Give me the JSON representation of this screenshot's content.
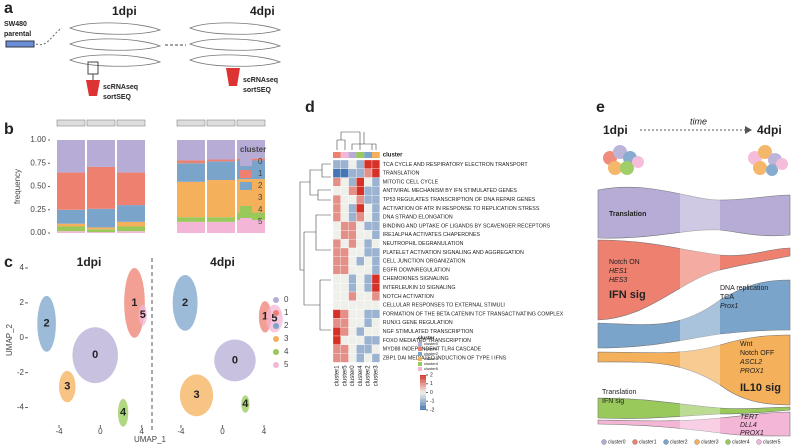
{
  "panel_labels": [
    "a",
    "b",
    "c",
    "d",
    "e"
  ],
  "schematic_a": {
    "source_lines": [
      "SW480",
      "parental"
    ],
    "timepoints": [
      "1dpi",
      "4dpi"
    ],
    "assay_lines": [
      "scRNAseq",
      "sortSEQ"
    ]
  },
  "chart_data": [
    {
      "type": "bar",
      "stacked": true,
      "categories": [
        null,
        null,
        null,
        null,
        null,
        null
      ],
      "ylabel": "frequency",
      "legend_title": "cluster",
      "ylim": [
        0,
        1
      ],
      "yticks": [
        {
          "value": 0,
          "label": "0.00"
        },
        {
          "value": 0.25,
          "label": "0.25"
        },
        {
          "value": 0.5,
          "label": "0.50"
        },
        {
          "value": 0.75,
          "label": "0.75"
        },
        {
          "value": 1,
          "label": "1.00"
        }
      ],
      "series": [
        {
          "name": "5",
          "color": "#f4b6d6",
          "values": [
            0.02,
            0.01,
            0.02,
            0.12,
            0.12,
            0.14
          ]
        },
        {
          "name": "4",
          "color": "#98c95a",
          "values": [
            0.05,
            0.03,
            0.05,
            0.05,
            0.05,
            0.08
          ]
        },
        {
          "name": "3",
          "color": "#f4b05a",
          "values": [
            0.03,
            0.02,
            0.05,
            0.38,
            0.4,
            0.36
          ]
        },
        {
          "name": "2",
          "color": "#7ba4cb",
          "values": [
            0.15,
            0.2,
            0.18,
            0.2,
            0.2,
            0.2
          ]
        },
        {
          "name": "1",
          "color": "#ee8070",
          "values": [
            0.4,
            0.45,
            0.35,
            0.03,
            0.02,
            0.02
          ]
        },
        {
          "name": "0",
          "color": "#b6acd6",
          "values": [
            0.35,
            0.29,
            0.35,
            0.22,
            0.21,
            0.2
          ]
        }
      ]
    },
    {
      "type": "umap",
      "xlabel": "UMAP_1",
      "ylabel": "UMAP_2",
      "ylim": [
        -5,
        4.8
      ],
      "yticks": [
        -4,
        -2,
        0,
        2,
        4
      ],
      "panels": [
        {
          "title": "1dpi",
          "xlim": [
            -7,
            4.8
          ],
          "xticks": [
            -4,
            0,
            4
          ],
          "clusters": [
            {
              "name": "0",
              "x": -0.5,
              "y": -1,
              "sx": 2.2,
              "sy": 1.6
            },
            {
              "name": "1",
              "x": 3.3,
              "y": 2,
              "sx": 1,
              "sy": 2
            },
            {
              "name": "2",
              "x": -5.2,
              "y": 0.8,
              "sx": 0.9,
              "sy": 1.6
            },
            {
              "name": "3",
              "x": -3.2,
              "y": -2.8,
              "sx": 0.8,
              "sy": 0.9
            },
            {
              "name": "4",
              "x": 2.2,
              "y": -4.3,
              "sx": 0.5,
              "sy": 0.8
            },
            {
              "name": "5",
              "x": 4.1,
              "y": 1.3,
              "sx": 0.4,
              "sy": 0.6
            }
          ]
        },
        {
          "title": "4dpi",
          "xlim": [
            -6.5,
            6.5
          ],
          "xticks": [
            -4,
            0,
            4
          ],
          "clusters": [
            {
              "name": "0",
              "x": 1.2,
              "y": -1.3,
              "sx": 2,
              "sy": 1.2
            },
            {
              "name": "1",
              "x": 4.1,
              "y": 1.2,
              "sx": 0.6,
              "sy": 0.9
            },
            {
              "name": "2",
              "x": -3.6,
              "y": 2,
              "sx": 1.2,
              "sy": 1.6
            },
            {
              "name": "3",
              "x": -2.5,
              "y": -3.3,
              "sx": 1.6,
              "sy": 1.2
            },
            {
              "name": "4",
              "x": 2.2,
              "y": -3.8,
              "sx": 0.4,
              "sy": 0.5
            },
            {
              "name": "5",
              "x": 5,
              "y": 1.1,
              "sx": 0.8,
              "sy": 0.8
            }
          ]
        }
      ]
    },
    {
      "type": "heatmap",
      "legend_title": "cluster",
      "columns": [
        "cluster1",
        "cluster5",
        "cluster0",
        "cluster4",
        "cluster2",
        "cluster3"
      ],
      "column_colors": [
        "#ee8070",
        "#f4b6d6",
        "#b6acd6",
        "#98c95a",
        "#7ba4cb",
        "#f4b05a"
      ],
      "rows": [
        "TCA CYCLE AND RESPIRATORY ELECTRON TRANSPORT",
        "TRANSLATION",
        "MITOTIC CELL CYCLE",
        "ANTIVIRAL MECHANISM BY IFN STIMULATED GENES",
        "TP53 REGULATES TRANSCRIPTION OF DNA REPAIR GENES",
        "ACTIVATION OF ATR IN RESPONSE TO REPLICATION STRESS",
        "DNA STRAND ELONGATION",
        "BINDING AND UPTAKE OF LIGANDS BY SCAVENGER RECEPTORS",
        "IRE1ALPHA ACTIVATES CHAPERONES",
        "NEUTROPHIL DEGRANULATION",
        "PLATELET ACTIVATION SIGNALING AND AGGREGATION",
        "CELL JUNCTION ORGANIZATION",
        "EGFR DOWNREGULATION",
        "CHEMOKINES SIGNALING",
        "INTERLEUKIN 10 SIGNALING",
        "NOTCH ACTIVATION",
        "CELLULAR RESPONSES TO EXTERNAL STIMULI",
        "FORMATION OF THE BETA CATENIN TCF TRANSACTIVATING COMPLEX",
        "RUNX1 GENE REGULATION",
        "NGF STIMULATED TRANSCRIPTION",
        "FOXO MEDIATED TRANSCRIPTION",
        "MYD88 INDEPENDENT TLR4 CASCADE",
        "ZBP1 DAI MEDIATED INDUCTION OF TYPE I IFNS"
      ],
      "values": [
        [
          -1,
          -1,
          0,
          -1,
          2,
          2
        ],
        [
          -2,
          -2,
          -1,
          -1,
          1,
          2
        ],
        [
          1,
          0,
          -1,
          2,
          0,
          -1
        ],
        [
          0,
          0,
          1,
          2,
          -1,
          -1
        ],
        [
          1,
          0,
          0,
          1,
          -1,
          -1
        ],
        [
          1,
          0,
          -1,
          2,
          0,
          -1
        ],
        [
          1,
          0,
          -1,
          1,
          0,
          -1
        ],
        [
          0,
          1,
          1,
          0,
          -1,
          -1
        ],
        [
          0,
          1,
          1,
          0,
          0,
          -1
        ],
        [
          1,
          0,
          1,
          0,
          -1,
          0
        ],
        [
          1,
          1,
          0,
          0,
          -1,
          -1
        ],
        [
          1,
          1,
          0,
          -1,
          0,
          -1
        ],
        [
          1,
          1,
          0,
          0,
          0,
          -1
        ],
        [
          0,
          0,
          -1,
          0,
          -1,
          2
        ],
        [
          0,
          0,
          -1,
          0,
          -1,
          2
        ],
        [
          0,
          0,
          1,
          0,
          0,
          1
        ],
        [
          0,
          0,
          0,
          0,
          0,
          0
        ],
        [
          2,
          1,
          0,
          0,
          -1,
          -1
        ],
        [
          1,
          1,
          0,
          0,
          -1,
          0
        ],
        [
          2,
          1,
          0,
          -1,
          0,
          0
        ],
        [
          2,
          0,
          0,
          0,
          -1,
          -1
        ],
        [
          1,
          1,
          0,
          -1,
          -1,
          0
        ],
        [
          1,
          1,
          0,
          -1,
          0,
          -1
        ]
      ],
      "scale_lim": [
        -2,
        2
      ],
      "scale_ticks": [
        2,
        1,
        0,
        -1,
        -2
      ]
    }
  ],
  "schematic_e": {
    "time_label": "time",
    "cluster_names": [
      "cluster0",
      "cluster1",
      "cluster2",
      "cluster3",
      "cluster4",
      "cluster5"
    ],
    "annotations": {
      "translation_top": "Translation",
      "salmon": [
        "Notch ON",
        "HES1",
        "HES3"
      ],
      "salmon_sig": "IFN sig",
      "blue": [
        "DNA replication",
        "TCA",
        "Prox1"
      ],
      "orange": [
        "Wnt",
        "Notch OFF",
        "ASCL2",
        "PROX1"
      ],
      "orange_sig": "IL10 sig",
      "green": [
        "Translation",
        "IFN sig"
      ],
      "pink": [
        "TERT",
        "DLL4",
        "PROX1"
      ]
    }
  }
}
